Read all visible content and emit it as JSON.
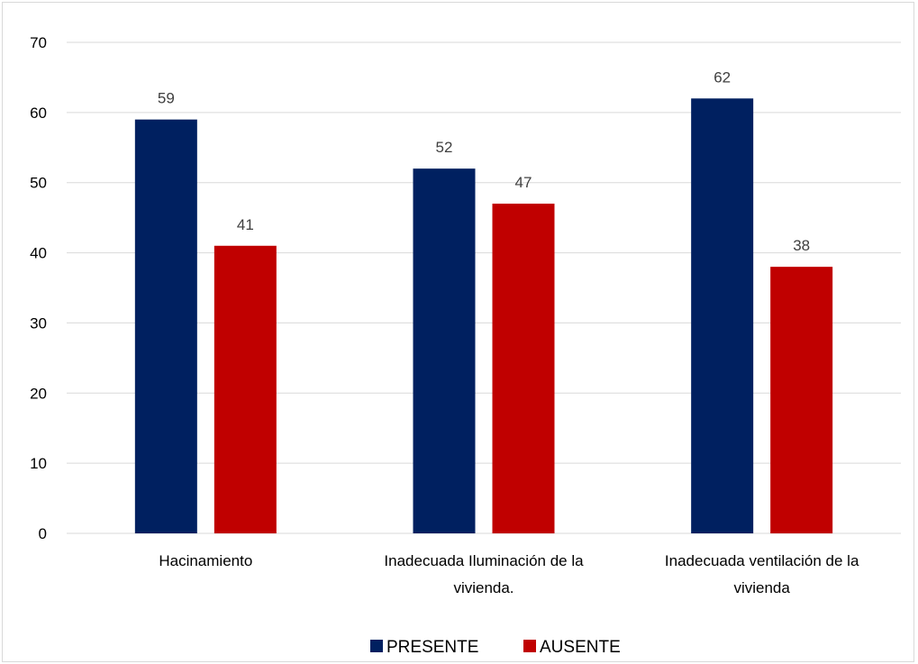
{
  "chart_data": {
    "type": "bar",
    "categories": [
      [
        "Hacinamiento"
      ],
      [
        "Inadecuada Iluminación de la",
        "vivienda."
      ],
      [
        "Inadecuada  ventilación de la",
        "vivienda"
      ]
    ],
    "series": [
      {
        "name": "PRESENTE",
        "color": "#002060",
        "values": [
          59,
          52,
          62
        ]
      },
      {
        "name": "AUSENTE",
        "color": "#c00000",
        "values": [
          41,
          47,
          38
        ]
      }
    ],
    "title": "",
    "xlabel": "",
    "ylabel": "",
    "ylim": [
      0,
      70
    ],
    "yticks": [
      0,
      10,
      20,
      30,
      40,
      50,
      60,
      70
    ],
    "grid": true,
    "legend": "bottom",
    "data_labels": true
  }
}
